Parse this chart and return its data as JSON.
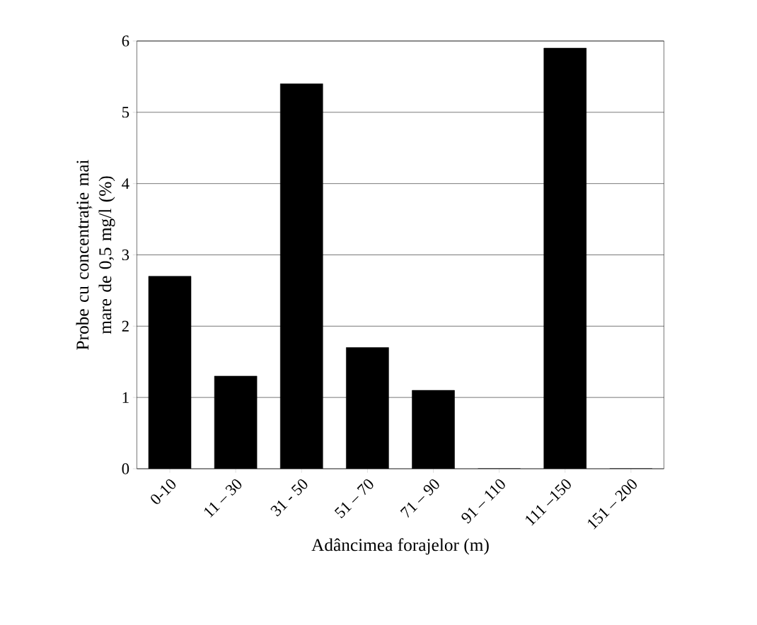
{
  "chart_data": {
    "type": "bar",
    "xlabel": "Adâncimea forajelor (m)",
    "ylabel": "Probe cu concentrație mai mare de 0,5 mg/l (%)",
    "categories": [
      "0-10",
      "11 – 30",
      "31 - 50",
      "51 – 70",
      "71 – 90",
      "91 – 110",
      "111 –150",
      "151 – 200"
    ],
    "values": [
      2.7,
      1.3,
      5.4,
      1.7,
      1.1,
      0,
      5.9,
      0
    ],
    "color": "#000000",
    "ylim": [
      0,
      6
    ],
    "yticks": [
      0,
      1,
      2,
      3,
      4,
      5,
      6
    ],
    "grid": "y"
  }
}
